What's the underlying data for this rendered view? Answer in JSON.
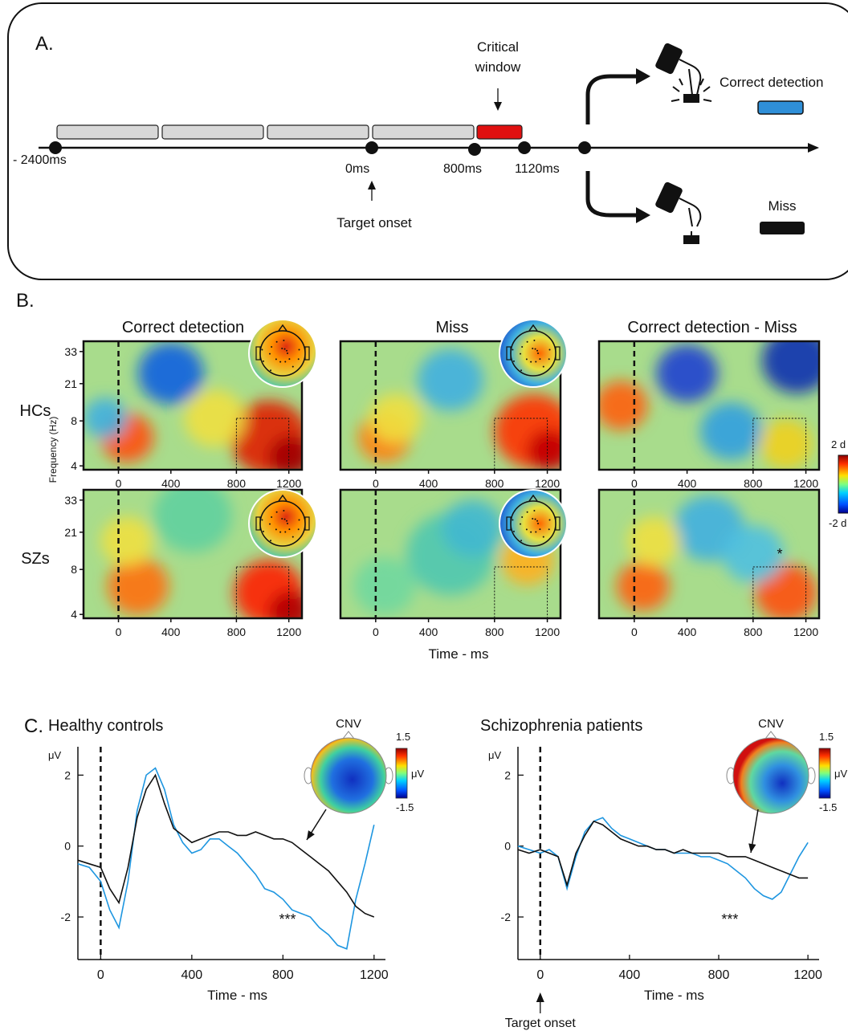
{
  "panel_a": {
    "label": "A.",
    "time_labels": [
      "- 2400ms",
      "0ms",
      "800ms",
      "1120ms"
    ],
    "critical_window": [
      "Critical",
      "window"
    ],
    "target_onset": "Target onset",
    "outcomes": {
      "correct": "Correct detection",
      "miss": "Miss"
    },
    "colors": {
      "stim_bar": "#d8d8d8",
      "critical": "#e01010",
      "correct": "#2f8fd8",
      "miss": "#111111"
    }
  },
  "panel_b": {
    "label": "B.",
    "columns": [
      "Correct detection",
      "Miss",
      "Correct detection - Miss"
    ],
    "rows": [
      "HCs",
      "SZs"
    ],
    "ylabel": "Frequency (Hz)",
    "yticks": [
      "33",
      "21",
      "8",
      "4"
    ],
    "xticks": [
      "0",
      "400",
      "800",
      "1200"
    ],
    "xlabel": "Time - ms",
    "colorbar": {
      "max": "2 d",
      "min": "-2 d"
    },
    "significance": "*"
  },
  "panel_c": {
    "label": "C.",
    "plots": [
      {
        "title": "Healthy controls",
        "topo_label": "CNV",
        "cbar_max": "1.5",
        "cbar_min": "-1.5",
        "cbar_unit": "μV",
        "ylabel": "μV",
        "yticks": [
          "2",
          "0",
          "-2"
        ],
        "xticks": [
          "0",
          "400",
          "800",
          "1200"
        ],
        "xlabel": "Time - ms",
        "stars": "***"
      },
      {
        "title": "Schizophrenia patients",
        "topo_label": "CNV",
        "cbar_max": "1.5",
        "cbar_min": "-1.5",
        "cbar_unit": "μV",
        "ylabel": "μV",
        "yticks": [
          "2",
          "0",
          "-2"
        ],
        "xticks": [
          "0",
          "400",
          "800",
          "1200"
        ],
        "xlabel": "Time - ms",
        "stars": "***",
        "onset_label": "Target onset"
      }
    ],
    "colors": {
      "correct_trace": "#1e96e0",
      "miss_trace": "#111111"
    }
  },
  "chart_data": [
    {
      "type": "line",
      "title": "Healthy controls",
      "xlabel": "Time - ms",
      "ylabel": "μV",
      "xlim": [
        -100,
        1250
      ],
      "ylim": [
        -3.2,
        2.8
      ],
      "series": [
        {
          "x": [
            -100,
            -50,
            0,
            40,
            80,
            120,
            160,
            200,
            240,
            280,
            320,
            360,
            400,
            440,
            480,
            520,
            560,
            600,
            640,
            680,
            720,
            760,
            800,
            840,
            880,
            920,
            960,
            1000,
            1040,
            1080,
            1120,
            1160,
            1200
          ],
          "values": [
            -0.5,
            -0.6,
            -1.0,
            -1.8,
            -2.3,
            -1.0,
            1.0,
            2.0,
            2.2,
            1.6,
            0.6,
            0.1,
            -0.2,
            -0.1,
            0.2,
            0.2,
            0.0,
            -0.2,
            -0.5,
            -0.8,
            -1.2,
            -1.3,
            -1.5,
            -1.8,
            -1.9,
            -2.0,
            -2.3,
            -2.5,
            -2.8,
            -2.9,
            -1.5,
            -0.5,
            0.6
          ]
        },
        {
          "x": [
            -100,
            -50,
            0,
            40,
            80,
            120,
            160,
            200,
            240,
            280,
            320,
            360,
            400,
            440,
            480,
            520,
            560,
            600,
            640,
            680,
            720,
            760,
            800,
            840,
            880,
            920,
            960,
            1000,
            1040,
            1080,
            1120,
            1160,
            1200
          ],
          "values": [
            -0.4,
            -0.5,
            -0.6,
            -1.2,
            -1.6,
            -0.6,
            0.8,
            1.6,
            2.0,
            1.2,
            0.5,
            0.3,
            0.1,
            0.2,
            0.3,
            0.4,
            0.4,
            0.3,
            0.3,
            0.4,
            0.3,
            0.2,
            0.2,
            0.1,
            -0.1,
            -0.3,
            -0.5,
            -0.7,
            -1.0,
            -1.3,
            -1.7,
            -1.9,
            -2.0
          ]
        }
      ]
    },
    {
      "type": "line",
      "title": "Schizophrenia patients",
      "xlabel": "Time - ms",
      "ylabel": "μV",
      "xlim": [
        -100,
        1250
      ],
      "ylim": [
        -3.2,
        2.8
      ],
      "series": [
        {
          "x": [
            -100,
            -50,
            0,
            40,
            80,
            120,
            160,
            200,
            240,
            280,
            320,
            360,
            400,
            440,
            480,
            520,
            560,
            600,
            640,
            680,
            720,
            760,
            800,
            840,
            880,
            920,
            960,
            1000,
            1040,
            1080,
            1120,
            1160,
            1200
          ],
          "values": [
            0.0,
            -0.1,
            -0.2,
            -0.1,
            -0.3,
            -1.2,
            -0.3,
            0.4,
            0.7,
            0.8,
            0.5,
            0.3,
            0.2,
            0.1,
            0.0,
            -0.1,
            -0.1,
            -0.2,
            -0.2,
            -0.2,
            -0.3,
            -0.3,
            -0.4,
            -0.5,
            -0.7,
            -0.9,
            -1.2,
            -1.4,
            -1.5,
            -1.3,
            -0.8,
            -0.3,
            0.1
          ]
        },
        {
          "x": [
            -100,
            -50,
            0,
            40,
            80,
            120,
            160,
            200,
            240,
            280,
            320,
            360,
            400,
            440,
            480,
            520,
            560,
            600,
            640,
            680,
            720,
            760,
            800,
            840,
            880,
            920,
            960,
            1000,
            1040,
            1080,
            1120,
            1160,
            1200
          ],
          "values": [
            -0.1,
            -0.2,
            -0.1,
            -0.2,
            -0.3,
            -1.1,
            -0.2,
            0.3,
            0.7,
            0.6,
            0.4,
            0.2,
            0.1,
            0.0,
            0.0,
            -0.1,
            -0.1,
            -0.2,
            -0.1,
            -0.2,
            -0.2,
            -0.2,
            -0.2,
            -0.3,
            -0.3,
            -0.3,
            -0.4,
            -0.5,
            -0.6,
            -0.7,
            -0.8,
            -0.9,
            -0.9
          ]
        }
      ]
    }
  ]
}
